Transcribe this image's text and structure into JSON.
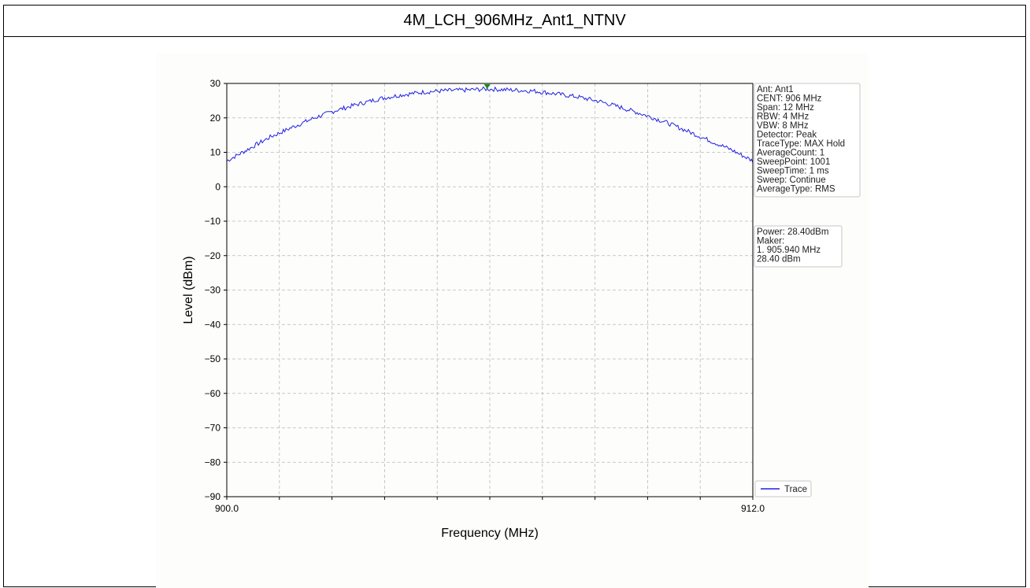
{
  "title": "4M_LCH_906MHz_Ant1_NTNV",
  "chart_data": {
    "type": "line",
    "xlabel": "Frequency (MHz)",
    "ylabel": "Level (dBm)",
    "xlim": [
      900.0,
      912.0
    ],
    "ylim": [
      -90,
      30
    ],
    "x_tick_labels": [
      "900.0",
      "912.0"
    ],
    "y_ticks": [
      30,
      20,
      10,
      0,
      -10,
      -20,
      -30,
      -40,
      -50,
      -60,
      -70,
      -80,
      -90
    ],
    "y_tick_labels": [
      "30",
      "20",
      "10",
      "0",
      "−10",
      "−20",
      "−30",
      "−40",
      "−50",
      "−60",
      "−70",
      "−80",
      "−90"
    ],
    "grid": true,
    "legend_position": "bottom-right",
    "series": [
      {
        "name": "Trace",
        "color": "#1f1fe6",
        "x": [
          900.0,
          900.5,
          901.0,
          901.5,
          902.0,
          902.5,
          903.0,
          903.5,
          904.0,
          904.5,
          905.0,
          905.5,
          905.94,
          906.5,
          907.0,
          907.5,
          908.0,
          908.5,
          909.0,
          909.5,
          910.0,
          910.5,
          911.0,
          911.5,
          912.0
        ],
        "y": [
          7.5,
          11.0,
          14.5,
          17.3,
          20.0,
          22.2,
          24.0,
          25.6,
          26.7,
          27.5,
          27.9,
          28.1,
          28.4,
          28.1,
          27.8,
          27.0,
          26.1,
          24.8,
          23.0,
          21.0,
          18.8,
          16.2,
          13.5,
          10.8,
          7.5
        ]
      }
    ],
    "marker": {
      "x": 905.94,
      "y": 28.4,
      "color": "#1a8a1a"
    },
    "info_box": [
      "Ant: Ant1",
      "CENT: 906 MHz",
      "Span: 12 MHz",
      "RBW: 4 MHz",
      "VBW: 8 MHz",
      "Detector: Peak",
      "TraceType: MAX Hold",
      "AverageCount: 1",
      "SweepPoint: 1001",
      "SweepTime: 1 ms",
      "Sweep: Continue",
      "AverageType: RMS"
    ],
    "result_box": [
      "Power: 28.40dBm",
      "Maker:",
      "1. 905.940 MHz",
      "    28.40 dBm"
    ]
  }
}
